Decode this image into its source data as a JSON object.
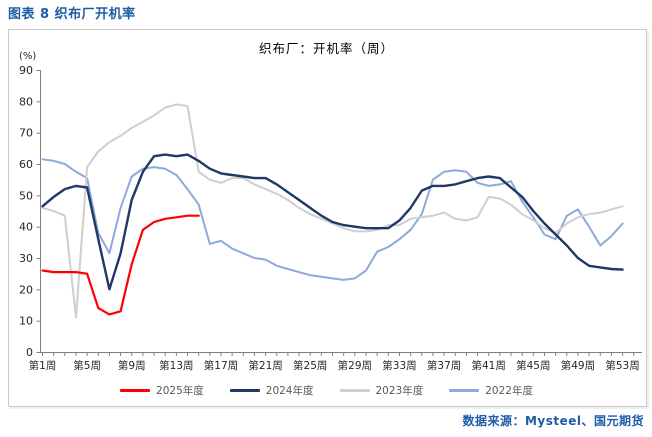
{
  "figure_title": "图表 8 织布厂开机率",
  "source": "数据来源：Mysteel、国元期货",
  "colors": {
    "accent_blue": "#1E5CA8",
    "box_border": "#C9C9C9",
    "axis_line": "#808080",
    "tick_label": "#262626",
    "legend_label": "#595959"
  },
  "chart_data": {
    "type": "line",
    "title": "织布厂：开机率（周）",
    "y_unit": "(%)",
    "xlabel": "",
    "ylabel": "开机率(%)",
    "ylim": [
      0,
      90
    ],
    "yticks": [
      0,
      10,
      20,
      30,
      40,
      50,
      60,
      70,
      80,
      90
    ],
    "x_unit": "week",
    "x_range_weeks": [
      1,
      53
    ],
    "xtick_weeks": [
      1,
      5,
      9,
      13,
      17,
      21,
      25,
      29,
      33,
      37,
      41,
      45,
      49,
      53
    ],
    "xtick_labels": [
      "第1周",
      "第5周",
      "第9周",
      "第13周",
      "第17周",
      "第21周",
      "第25周",
      "第29周",
      "第33周",
      "第37周",
      "第41周",
      "第45周",
      "第49周",
      "第53周"
    ],
    "grid": false,
    "legend_position": "bottom",
    "series": [
      {
        "name": "2025年度",
        "color": "#FF0000",
        "stroke_width": 2.2,
        "start_week": 1,
        "values": [
          26,
          25.5,
          25.5,
          25.5,
          25,
          14,
          12,
          13,
          28,
          39,
          41.5,
          42.5,
          43,
          43.5,
          43.5
        ]
      },
      {
        "name": "2024年度",
        "color": "#1F3864",
        "stroke_width": 2.4,
        "start_week": 1,
        "values": [
          46.5,
          49.5,
          52,
          53,
          52.5,
          36,
          20,
          31.5,
          48.5,
          57.5,
          62.5,
          63,
          62.5,
          63,
          61,
          58.5,
          57,
          56.5,
          56,
          55.5,
          55.5,
          53.5,
          51,
          48.5,
          46,
          43.5,
          41.5,
          40.5,
          40,
          39.5,
          39.5,
          39.5,
          42,
          46,
          51.5,
          53,
          53,
          53.5,
          54.5,
          55.5,
          56,
          55.5,
          52.5,
          49.5,
          45,
          41,
          37.5,
          34,
          30,
          27.5,
          27,
          26.5,
          26.3
        ]
      },
      {
        "name": "2023年度",
        "color": "#D0CECE",
        "stroke_width": 2,
        "start_week": 1,
        "values": [
          46,
          45,
          43.5,
          11,
          59,
          64,
          67,
          69,
          71.5,
          73.5,
          75.5,
          78,
          79,
          78.5,
          57.5,
          55,
          54,
          55.5,
          55.5,
          53.5,
          52,
          50.5,
          48.5,
          46,
          44,
          42.5,
          41,
          39.5,
          38.5,
          38.5,
          39,
          40.5,
          40.5,
          42.5,
          43,
          43.5,
          44.5,
          42.5,
          42,
          43,
          49.5,
          49,
          47,
          44,
          42,
          39.5,
          38,
          41,
          43,
          44,
          44.5,
          45.5,
          46.5
        ]
      },
      {
        "name": "2022年度",
        "color": "#8EA9DB",
        "stroke_width": 2,
        "start_week": 1,
        "values": [
          61.5,
          61,
          60,
          57.5,
          55.5,
          38,
          31.5,
          46,
          56,
          58.5,
          59,
          58.5,
          56.5,
          52,
          47,
          34.5,
          35.5,
          33,
          31.5,
          30,
          29.5,
          27.5,
          26.5,
          25.5,
          24.5,
          24,
          23.5,
          23,
          23.5,
          26,
          32,
          33.5,
          36,
          39,
          44,
          55,
          57.5,
          58,
          57.5,
          54,
          53,
          53.5,
          54.5,
          48,
          43,
          37.5,
          36,
          43.5,
          45.5,
          40,
          34,
          37,
          41
        ]
      }
    ]
  }
}
